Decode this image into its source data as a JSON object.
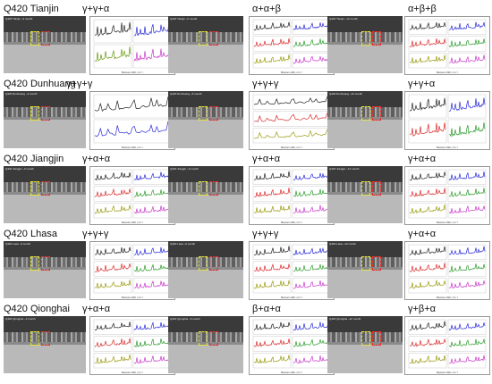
{
  "rows": [
    {
      "site": "Q420 Tianjin",
      "panels": [
        {
          "caption": "Q420 Tianjin ~3 month",
          "phases": "γ+γ+α",
          "colors": [
            "#222222",
            "#2a2ad8",
            "#6a9a10",
            "#c83ac8"
          ]
        },
        {
          "caption": "Q420 Tianjin ~6 month",
          "phases": "α+α+β",
          "colors": [
            "#222222",
            "#2a2ad8",
            "#d82a2a",
            "#2a9a2a",
            "#9a9a10",
            "#c83ac8"
          ]
        },
        {
          "caption": "Q420 Tianjin ~12 month",
          "phases": "α+β+β",
          "colors": [
            "#222222",
            "#2a2ad8",
            "#d82a2a",
            "#2a9a2a",
            "#9a9a10",
            "#c83ac8"
          ]
        }
      ]
    },
    {
      "site": "Q420 Dunhuang",
      "panels": [
        {
          "caption": "Q420 Dunhuang ~3 month",
          "phases": "γ+γ+γ",
          "colors": [
            "#222222",
            "#2a2ad8"
          ]
        },
        {
          "caption": "Q420 Dunhuang ~6 month",
          "phases": "γ+γ+γ",
          "colors": [
            "#222222",
            "#d82a2a",
            "#9a9a10"
          ]
        },
        {
          "caption": "Q420 Dunhuang ~12 month",
          "phases": "γ+γ+α",
          "colors": [
            "#222222",
            "#2a2ad8",
            "#d82a2a",
            "#2a9a2a"
          ]
        }
      ]
    },
    {
      "site": "Q420 Jiangjin",
      "panels": [
        {
          "caption": "Q420 Jiangjin ~3 month",
          "phases": "γ+α+α",
          "colors": [
            "#222222",
            "#2a2ad8",
            "#d82a2a",
            "#2a9a2a",
            "#9a9a10",
            "#c83ac8"
          ]
        },
        {
          "caption": "Q420 Jiangjin ~6 month",
          "phases": "γ+α+α",
          "colors": [
            "#222222",
            "#2a2ad8",
            "#d82a2a",
            "#2a9a2a",
            "#9a9a10",
            "#c83ac8"
          ]
        },
        {
          "caption": "Q420 Jiangjin ~12 month",
          "phases": "γ+α+α",
          "colors": [
            "#222222",
            "#2a2ad8",
            "#d82a2a",
            "#2a9a2a",
            "#9a9a10",
            "#c83ac8"
          ]
        }
      ]
    },
    {
      "site": "Q420 Lhasa",
      "panels": [
        {
          "caption": "Q420 Lasa ~3 month",
          "phases": "γ+γ+γ",
          "colors": [
            "#222222",
            "#2a2ad8",
            "#d82a2a",
            "#2a9a2a",
            "#9a9a10",
            "#c83ac8"
          ]
        },
        {
          "caption": "Q420 Lasa ~6 month",
          "phases": "γ+γ+γ",
          "colors": [
            "#222222",
            "#2a2ad8",
            "#d82a2a",
            "#2a9a2a",
            "#9a9a10",
            "#c83ac8"
          ]
        },
        {
          "caption": "Q420 Lasa ~12 month",
          "phases": "γ+α+α",
          "colors": [
            "#222222",
            "#2a2ad8",
            "#d82a2a",
            "#2a9a2a",
            "#9a9a10",
            "#c83ac8"
          ]
        }
      ]
    },
    {
      "site": "Q420 Qionghai",
      "panels": [
        {
          "caption": "Q420 Qionghai ~3 month",
          "phases": "γ+α+α",
          "colors": [
            "#222222",
            "#2a2ad8",
            "#d82a2a",
            "#2a9a2a",
            "#9a9a10",
            "#c83ac8"
          ]
        },
        {
          "caption": "Q420 Qionghai ~6 month",
          "phases": "β+α+α",
          "colors": [
            "#222222",
            "#2a2ad8",
            "#d82a2a",
            "#2a9a2a",
            "#9a9a10",
            "#c83ac8"
          ]
        },
        {
          "caption": "Q420 Qionghai ~12 month",
          "phases": "γ+β+α",
          "colors": [
            "#222222",
            "#2a2ad8",
            "#d82a2a",
            "#2a9a2a",
            "#9a9a10",
            "#c83ac8"
          ]
        }
      ]
    }
  ],
  "raman_xlabel": "Raman shift, cm⁻¹"
}
